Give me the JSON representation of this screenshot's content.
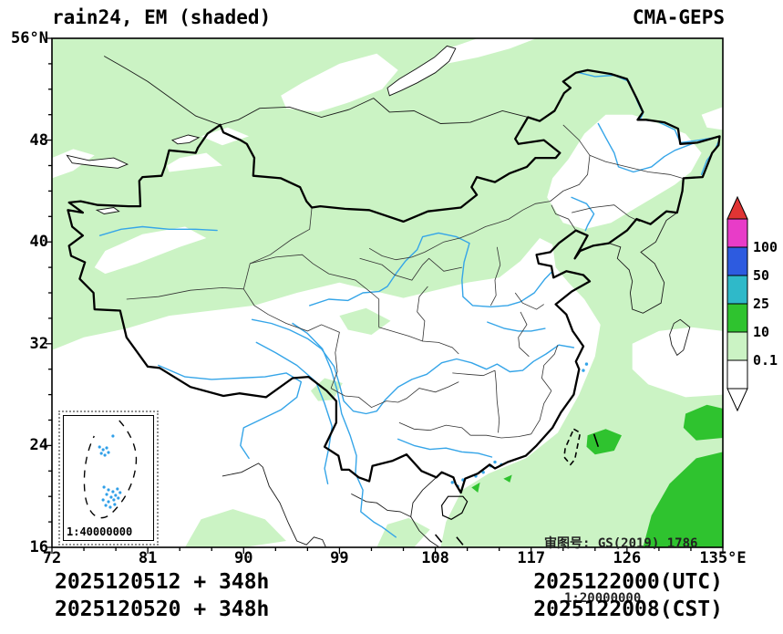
{
  "header": {
    "title": "rain24, EM (shaded)",
    "model": "CMA-GEPS"
  },
  "axes": {
    "lat_labels": [
      "56°N",
      "48",
      "40",
      "32",
      "24",
      "16"
    ],
    "lon_labels": [
      "72",
      "81",
      "90",
      "99",
      "108",
      "117",
      "126",
      "135°E"
    ]
  },
  "colorbar": {
    "tick_labels": [
      "100",
      "50",
      "25",
      "10",
      "0.1"
    ],
    "values": [
      100,
      50,
      25,
      10,
      0.1
    ],
    "top_arrow_color": "#e03434",
    "bottom_arrow_color": "#ffffff",
    "segment_colors": [
      "#e83cc8",
      "#2d5be0",
      "#2fb9c9",
      "#2fc32f",
      "#cbf3c4",
      "#ffffff"
    ]
  },
  "map_colors": {
    "shade_0_1_to_10": "#cbf3c4",
    "shade_10_to_25": "#2fc32f",
    "river_blue": "#35a5e8"
  },
  "notes": {
    "review": "审图号: GS(2019) 1786",
    "scale": "1:20000000"
  },
  "inset": {
    "scale": "1:40000000"
  },
  "footer": {
    "init_utc": "2025120512 + 348h",
    "init_cst": "2025120520 + 348h",
    "valid_utc": "2025122000(UTC)",
    "valid_cst": "2025122008(CST)"
  }
}
